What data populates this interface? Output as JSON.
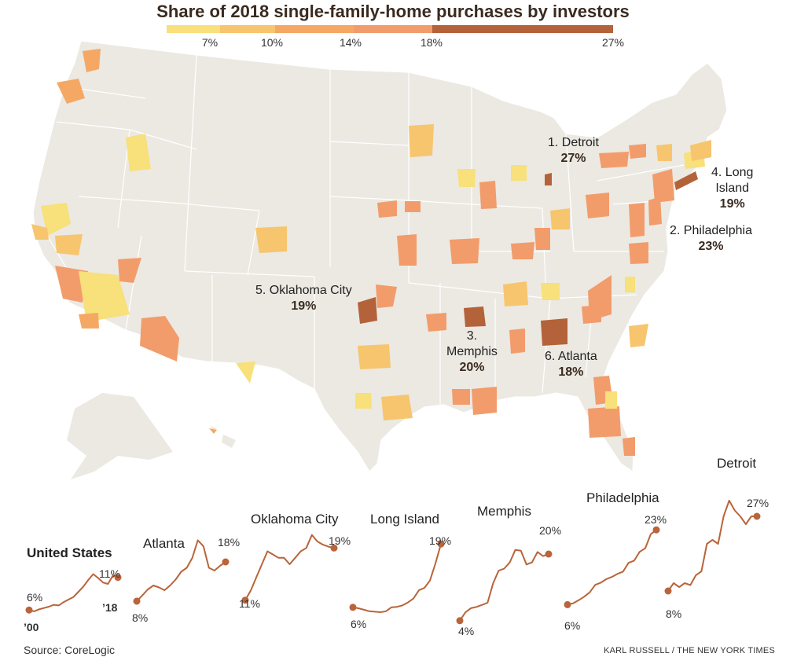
{
  "title": "Share of 2018 single-family-home purchases by investors",
  "legend": {
    "ticks": [
      "7%",
      "10%",
      "14%",
      "18%",
      "27%"
    ],
    "colors": [
      "#f8e07a",
      "#f7c56e",
      "#f5a864",
      "#f29c6c",
      "#b4623a"
    ]
  },
  "colors": {
    "land": "#ebe9e2",
    "border": "#ffffff",
    "line": "#b9643a"
  },
  "callouts": [
    {
      "name": "1. Detroit",
      "pct": "27%"
    },
    {
      "name": "2. Philadelphia",
      "pct": "23%"
    },
    {
      "name": "3. Memphis",
      "prefix": "3.",
      "label": "Memphis",
      "pct": "20%"
    },
    {
      "name_line1": "4. Long",
      "name_line2": "Island",
      "pct": "19%"
    },
    {
      "name": "5. Oklahoma City",
      "pct": "19%"
    },
    {
      "name": "6. Atlanta",
      "pct": "18%"
    }
  ],
  "sparklines": {
    "us": {
      "title": "United States",
      "start": "6%",
      "end": "11%",
      "start_year": "’00",
      "end_year": "’18",
      "values": [
        6,
        5.8,
        6.1,
        6.3,
        6.5,
        6.8,
        6.7,
        7.2,
        7.6,
        8.0,
        8.8,
        9.6,
        10.6,
        11.5,
        10.9,
        10.2,
        10.0,
        11.3,
        11
      ]
    },
    "atlanta": {
      "title": "Atlanta",
      "start": "8%",
      "end": "18%",
      "values": [
        8,
        9.5,
        11,
        12,
        11.5,
        10.8,
        12,
        13.5,
        15.5,
        16.5,
        19,
        23.5,
        22,
        16.5,
        15.8,
        17,
        18
      ]
    },
    "oklahoma": {
      "title": "Oklahoma City",
      "start": "11%",
      "end": "19%",
      "values": [
        11,
        12.5,
        14.5,
        16.5,
        18.5,
        18,
        17.5,
        17.5,
        16.5,
        17.5,
        18.5,
        19,
        21,
        20,
        19.5,
        19.2,
        19
      ]
    },
    "longisland": {
      "title": "Long Island",
      "start": "6%",
      "end": "19%",
      "values": [
        6,
        5.8,
        5.5,
        5.2,
        5.1,
        5.0,
        5.2,
        6.0,
        6.1,
        6.4,
        7.0,
        7.8,
        9.5,
        10.0,
        11.5,
        15.0,
        19
      ]
    },
    "memphis": {
      "title": "Memphis",
      "start": "4%",
      "end": "20%",
      "values": [
        4,
        6,
        7,
        7.3,
        7.8,
        8.3,
        13,
        16,
        16.5,
        18,
        21,
        20.8,
        17.5,
        18,
        20.5,
        19.5,
        20
      ]
    },
    "philadelphia": {
      "title": "Philadelphia",
      "start": "6%",
      "end": "23%",
      "values": [
        6,
        6.3,
        7.0,
        7.8,
        8.8,
        10.5,
        11.0,
        11.8,
        12.3,
        13.0,
        13.5,
        15.5,
        16.0,
        18.0,
        18.8,
        22.0,
        23
      ]
    },
    "detroit": {
      "title": "Detroit",
      "start": "8%",
      "end": "27%",
      "values": [
        8,
        10,
        9,
        10,
        9.5,
        12,
        13,
        20,
        21,
        20,
        27,
        31,
        28.5,
        27,
        25,
        27,
        27
      ]
    }
  },
  "source": "Source: CoreLogic",
  "credit": "KARL RUSSELL / THE NEW YORK TIMES"
}
